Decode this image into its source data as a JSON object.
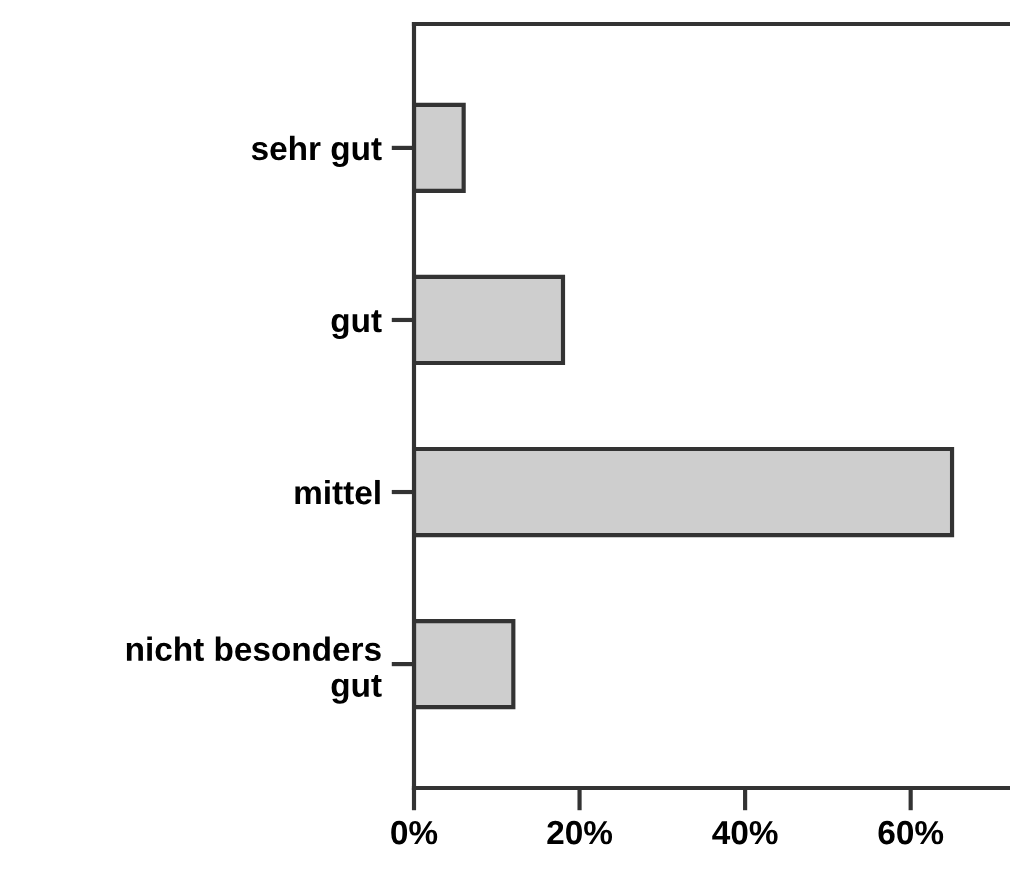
{
  "chart_data": {
    "type": "bar",
    "orientation": "horizontal",
    "categories": [
      "sehr gut",
      "gut",
      "mittel",
      "nicht besonders\ngut"
    ],
    "values": [
      6,
      18,
      65,
      12
    ],
    "color": "#cecece",
    "xlim": [
      0,
      72
    ],
    "xticks": [
      {
        "value": 0,
        "label": "0%"
      },
      {
        "value": 20,
        "label": "20%"
      },
      {
        "value": 40,
        "label": "40%"
      },
      {
        "value": 60,
        "label": "60%"
      }
    ],
    "grid": false,
    "legend": false
  }
}
